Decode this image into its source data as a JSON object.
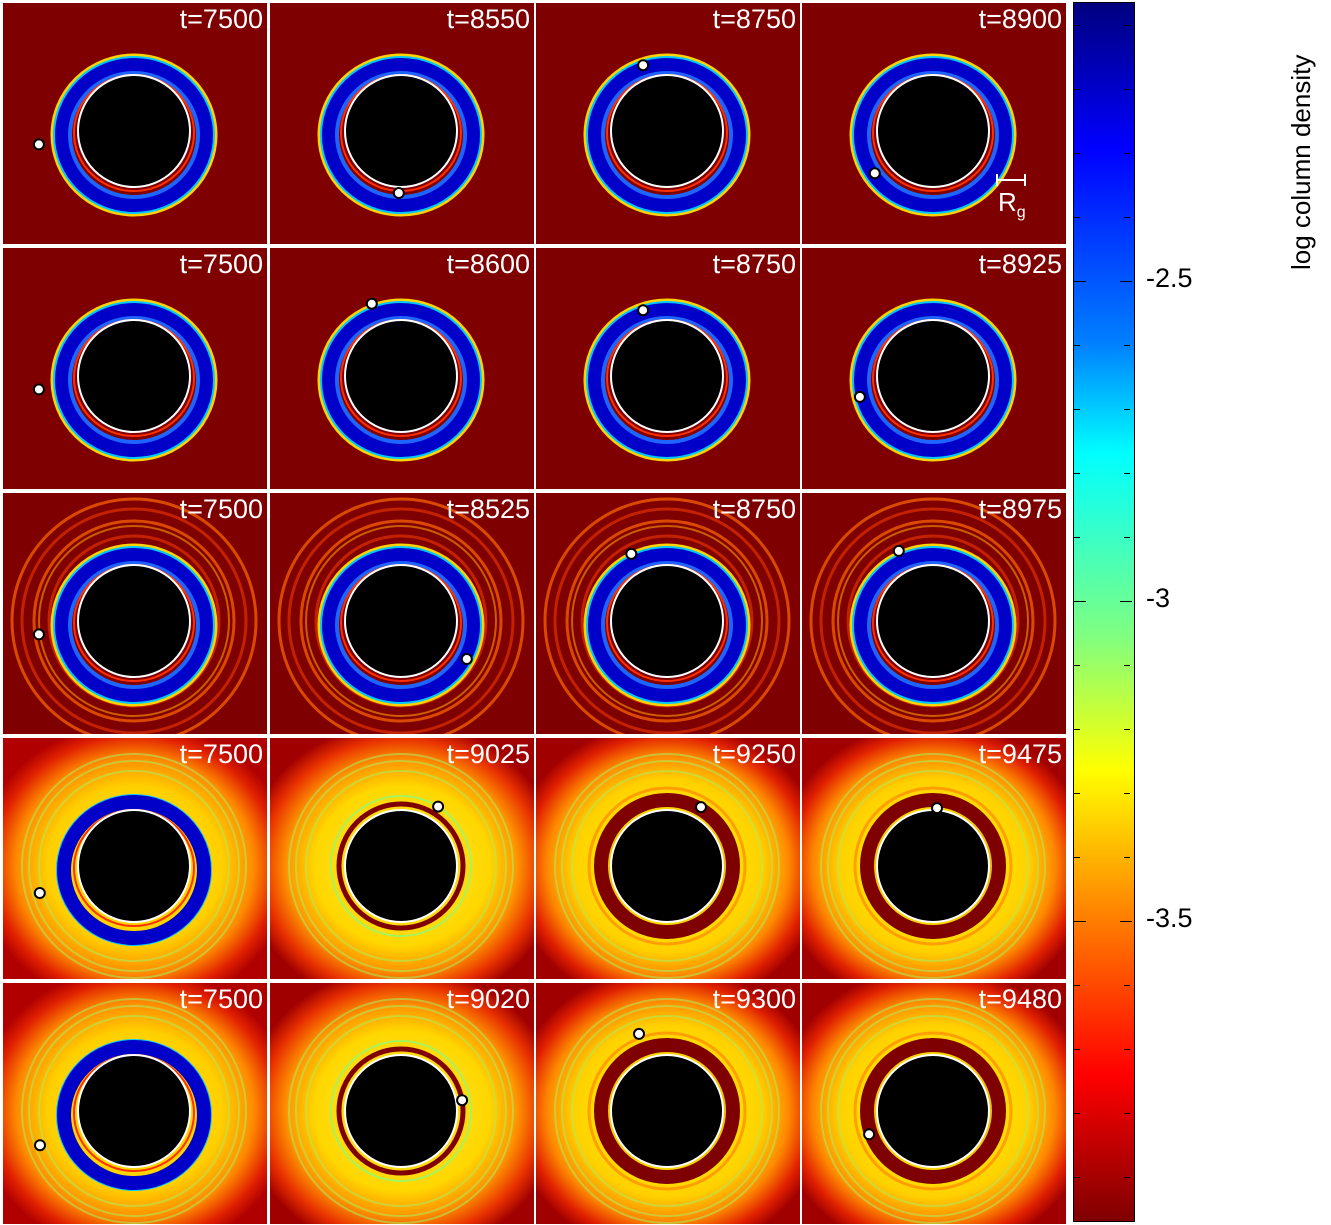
{
  "figure": {
    "panels": [
      [
        "t=7500",
        "t=8550",
        "t=8750",
        "t=8900"
      ],
      [
        "t=7500",
        "t=8600",
        "t=8750",
        "t=8925"
      ],
      [
        "t=7500",
        "t=8525",
        "t=8750",
        "t=8975"
      ],
      [
        "t=7500",
        "t=9025",
        "t=9250",
        "t=9475"
      ],
      [
        "t=7500",
        "t=9020",
        "t=9300",
        "t=9480"
      ]
    ],
    "scale_bar": {
      "label": "R",
      "subscript": "g"
    },
    "colorbar": {
      "title": "log column density",
      "tick_labels": [
        "-2.5",
        "-3",
        "-3.5"
      ]
    }
  },
  "colors": {
    "background": "#7f0000",
    "disk_blue": "#0000cd",
    "disk_yellow": "#ffd800",
    "black_hole": "#000000",
    "outline": "#ffffff"
  }
}
